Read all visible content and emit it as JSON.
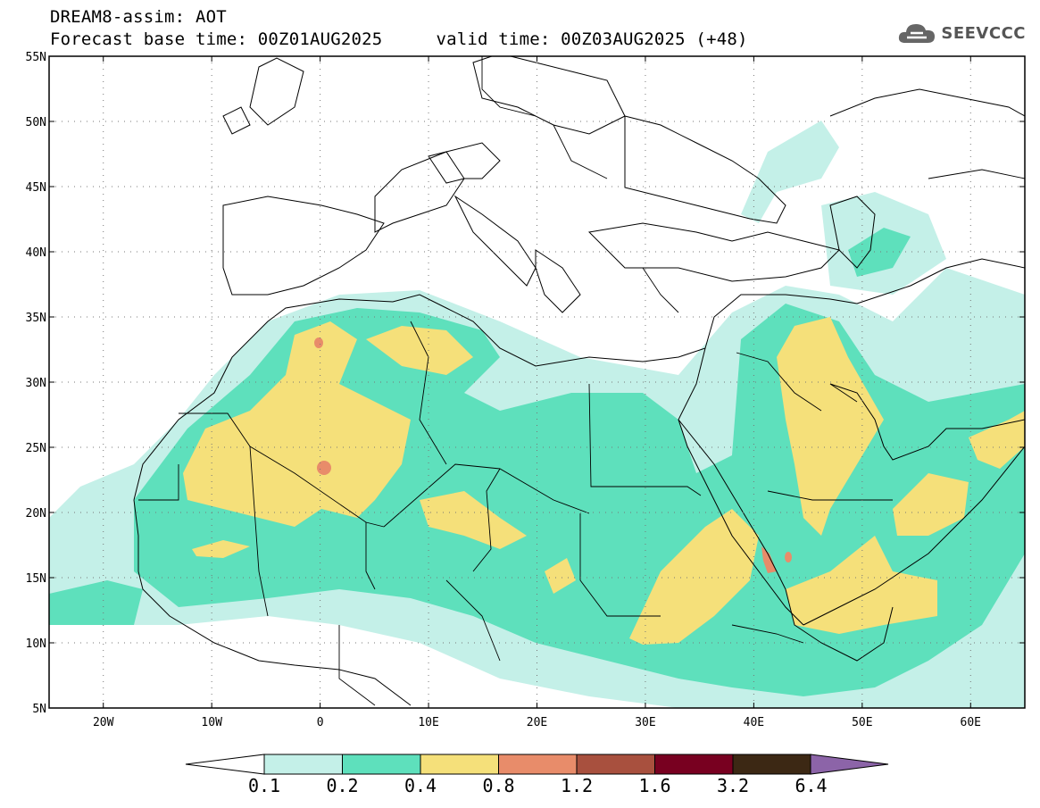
{
  "title": {
    "line1": "DREAM8-assim: AOT",
    "base_time": "Forecast base time: 00Z01AUG2025",
    "valid_time": "valid time: 00Z03AUG2025 (+48)"
  },
  "logo": {
    "text": "SEEVCCC",
    "icon": "cloud-icon"
  },
  "map": {
    "lon_range": [
      -25,
      65
    ],
    "lat_range": [
      5,
      55
    ],
    "lon_ticks": [
      {
        "value": -20,
        "label": "20W"
      },
      {
        "value": -10,
        "label": "10W"
      },
      {
        "value": 0,
        "label": "0"
      },
      {
        "value": 10,
        "label": "10E"
      },
      {
        "value": 20,
        "label": "20E"
      },
      {
        "value": 30,
        "label": "30E"
      },
      {
        "value": 40,
        "label": "40E"
      },
      {
        "value": 50,
        "label": "50E"
      },
      {
        "value": 60,
        "label": "60E"
      }
    ],
    "lat_ticks": [
      {
        "value": 55,
        "label": "55N"
      },
      {
        "value": 50,
        "label": "50N"
      },
      {
        "value": 45,
        "label": "45N"
      },
      {
        "value": 40,
        "label": "40N"
      },
      {
        "value": 35,
        "label": "35N"
      },
      {
        "value": 30,
        "label": "30N"
      },
      {
        "value": 25,
        "label": "25N"
      },
      {
        "value": 20,
        "label": "20N"
      },
      {
        "value": 15,
        "label": "15N"
      },
      {
        "value": 10,
        "label": "10N"
      },
      {
        "value": 5,
        "label": "5N"
      }
    ]
  },
  "colorbar": {
    "colors": [
      "#c4f0e8",
      "#5ee0bc",
      "#f5e07a",
      "#e88c6a",
      "#a8503e",
      "#780020",
      "#3c2814",
      "#8c64a8"
    ],
    "labels": [
      "0.1",
      "0.2",
      "0.4",
      "0.8",
      "1.2",
      "1.6",
      "3.2",
      "6.4"
    ]
  }
}
